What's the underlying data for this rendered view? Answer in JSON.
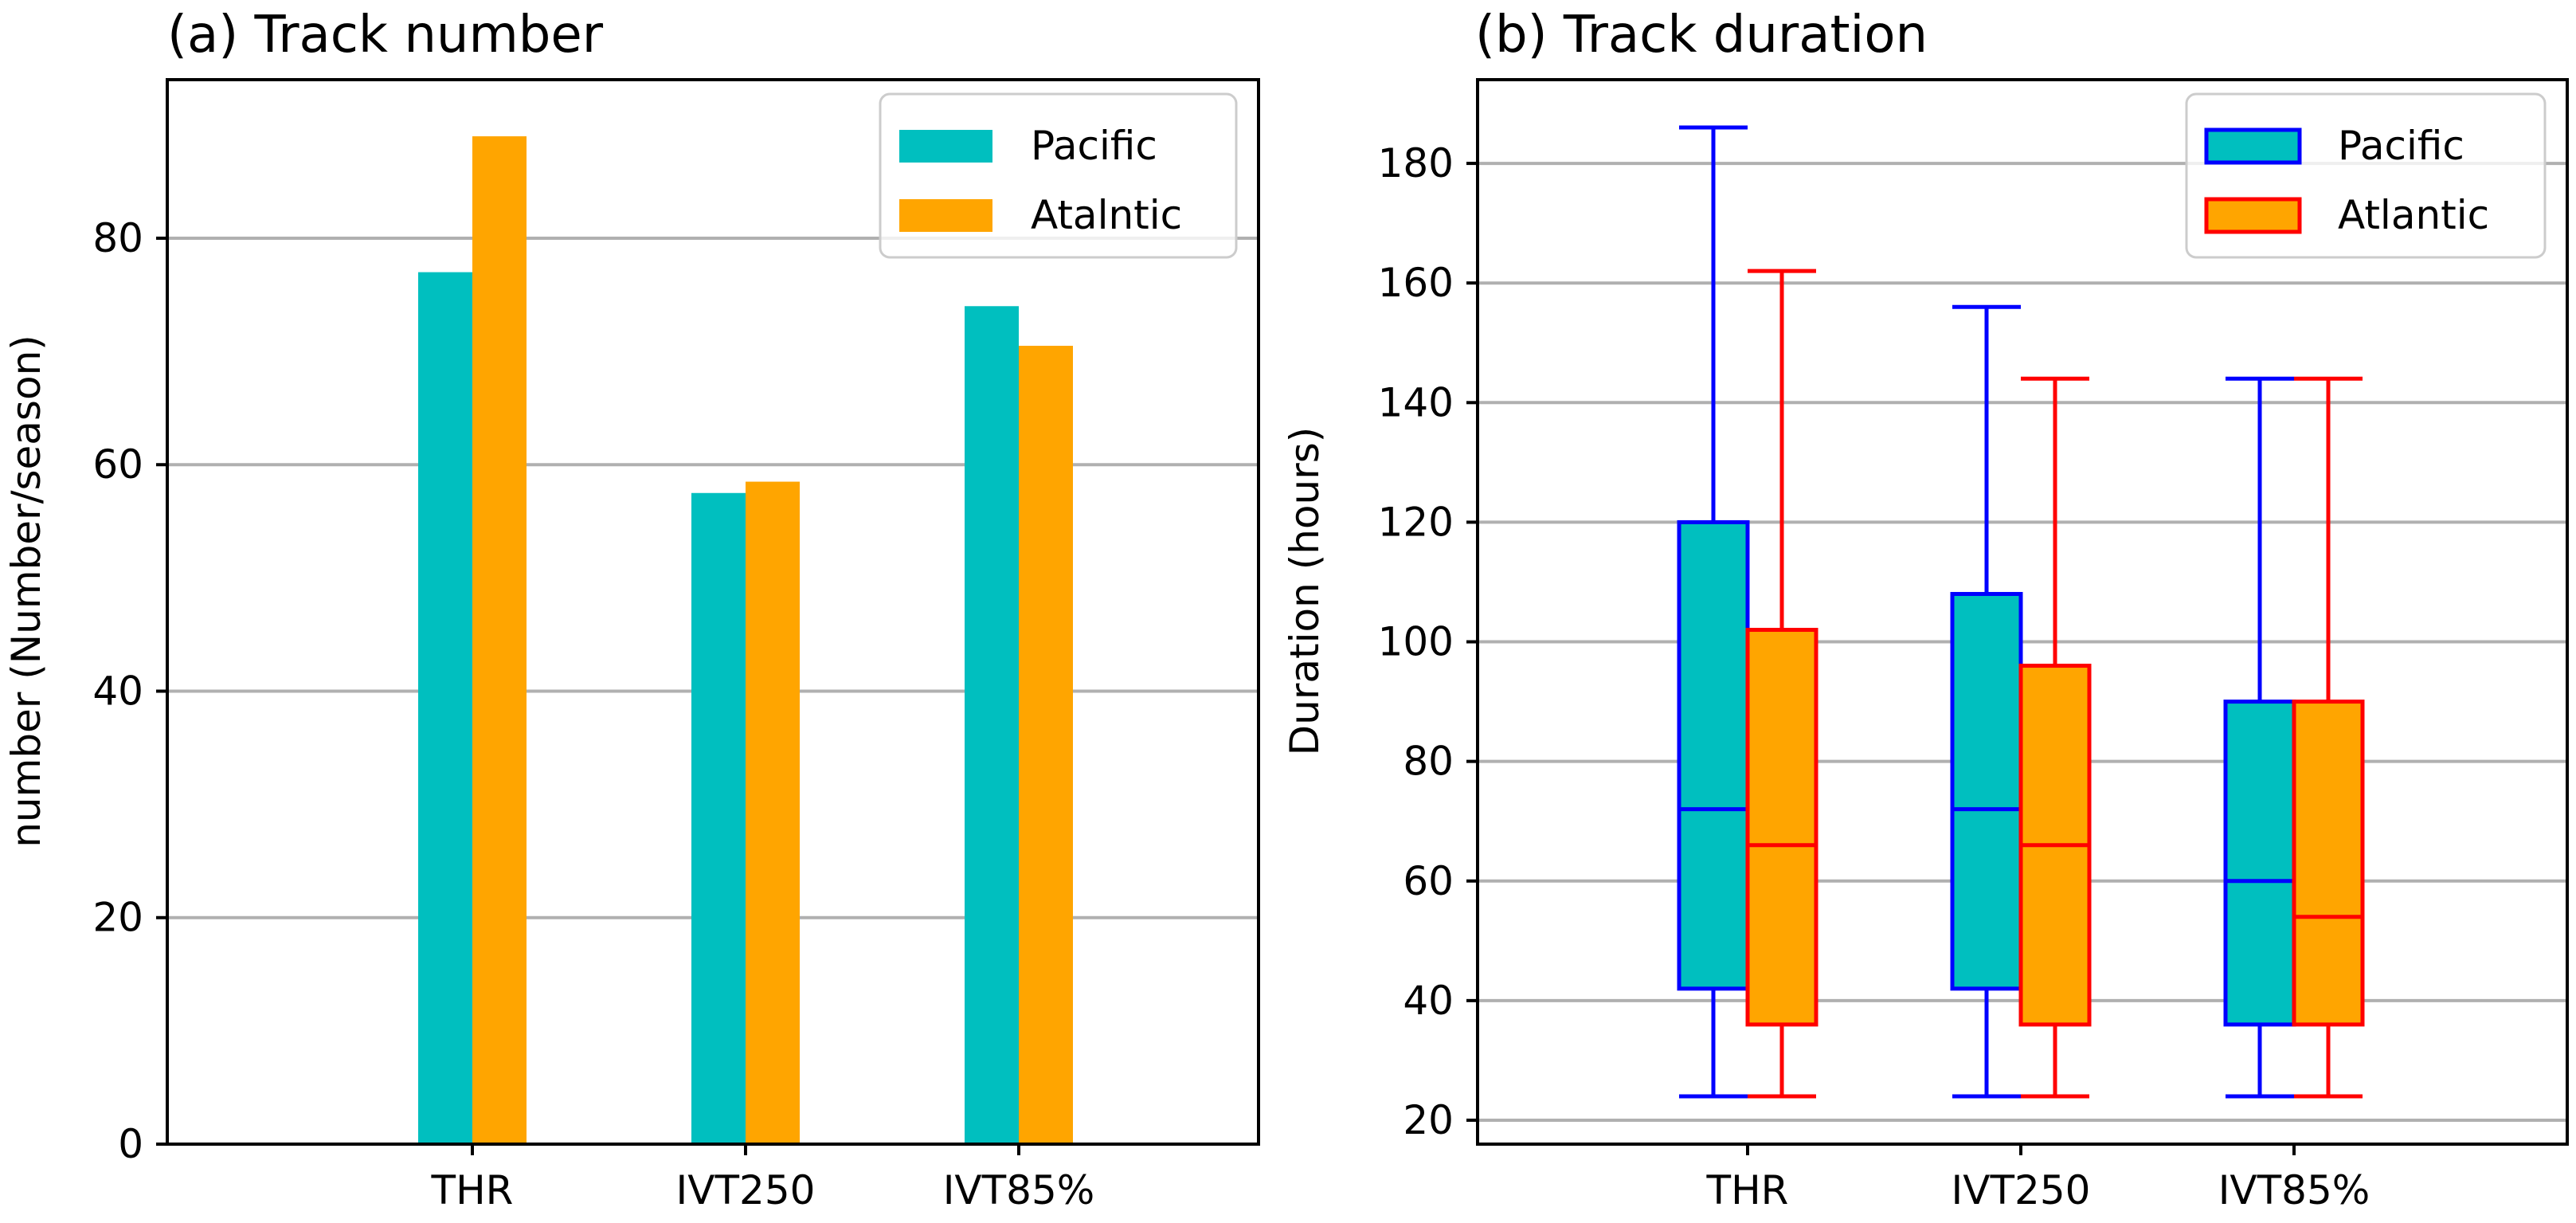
{
  "chart_data": [
    {
      "type": "bar",
      "title": "(a) Track number",
      "xlabel": "",
      "ylabel": "number (Number/season)",
      "categories": [
        "THR",
        "IVT250",
        "IVT85%"
      ],
      "series": [
        {
          "name": "Pacific",
          "values": [
            77,
            57.5,
            74
          ],
          "color": "#00BFBF"
        },
        {
          "name": "Atalntic",
          "values": [
            89,
            58.5,
            70.5
          ],
          "color": "#FFA500"
        }
      ],
      "ylim": [
        0,
        94
      ],
      "yticks": [
        0,
        20,
        40,
        60,
        80
      ],
      "grid": "y",
      "legend_position": "top-right"
    },
    {
      "type": "box",
      "title": "(b) Track duration",
      "xlabel": "",
      "ylabel": "Duration (hours)",
      "categories": [
        "THR",
        "IVT250",
        "IVT85%"
      ],
      "series": [
        {
          "name": "Pacific",
          "fill": "#00BFBF",
          "edge": "#0000FF",
          "boxes": [
            {
              "whislo": 24,
              "q1": 42,
              "med": 72,
              "q3": 120,
              "whishi": 186
            },
            {
              "whislo": 24,
              "q1": 42,
              "med": 72,
              "q3": 108,
              "whishi": 156
            },
            {
              "whislo": 24,
              "q1": 36,
              "med": 60,
              "q3": 90,
              "whishi": 144
            }
          ]
        },
        {
          "name": "Atlantic",
          "fill": "#FFA500",
          "edge": "#FF0000",
          "boxes": [
            {
              "whislo": 24,
              "q1": 36,
              "med": 66,
              "q3": 102,
              "whishi": 162
            },
            {
              "whislo": 24,
              "q1": 36,
              "med": 66,
              "q3": 96,
              "whishi": 144
            },
            {
              "whislo": 24,
              "q1": 36,
              "med": 54,
              "q3": 90,
              "whishi": 144
            }
          ]
        }
      ],
      "ylim": [
        16,
        194
      ],
      "yticks": [
        20,
        40,
        60,
        80,
        100,
        120,
        140,
        160,
        180
      ],
      "grid": "y",
      "legend_position": "top-right"
    }
  ]
}
